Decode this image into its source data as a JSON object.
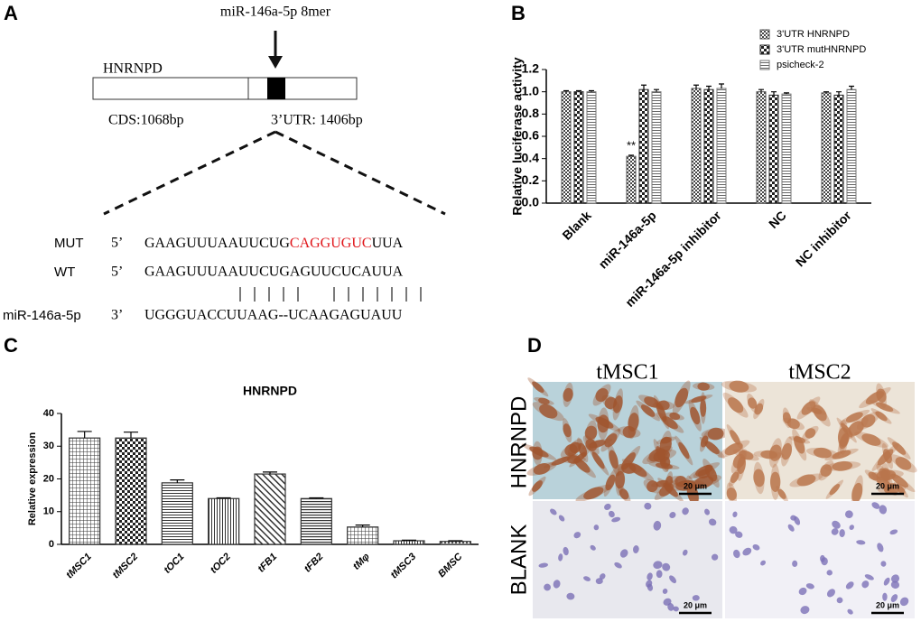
{
  "panels": [
    "A",
    "B",
    "C",
    "D"
  ],
  "diagram": {
    "site": "miR-146a-5p 8mer",
    "gene": "HNRNPD",
    "cds": "CDS:1068bp",
    "utr": "3’UTR: 1406bp",
    "mut": {
      "label": "MUT",
      "end": "5’",
      "seq": [
        "GAAGUUUAAUUCUG",
        "CAGGUGUC",
        "UUA"
      ]
    },
    "wt": {
      "label": "WT",
      "end": "5’",
      "seq": "GAAGUUUAAUUCUGAGUUCUCAUUA"
    },
    "mirna": {
      "label": "miR-146a-5p",
      "end": "3’",
      "seq": "UGGGUACCUUAAG--UCAAGAGUAUU"
    }
  },
  "chart_data": [
    {
      "type": "bar",
      "ylabel": "Relative luciferase activity",
      "categories": [
        "Blank",
        "miR-146a-5p",
        "miR-146a-5p inhibitor",
        "NC",
        "NC inhibitor"
      ],
      "series": [
        {
          "name": "3'UTR HNRNPD",
          "color": "#555555",
          "values": [
            1.0,
            0.42,
            1.03,
            1.0,
            0.99
          ],
          "errors": [
            0.01,
            0.01,
            0.03,
            0.02,
            0.01
          ]
        },
        {
          "name": "3'UTR mutHNRNPD",
          "color": "#222222",
          "values": [
            1.0,
            1.02,
            1.02,
            0.97,
            0.97
          ],
          "errors": [
            0.01,
            0.04,
            0.03,
            0.03,
            0.03
          ]
        },
        {
          "name": "psicheck-2",
          "color": "#777777",
          "values": [
            1.0,
            1.0,
            1.03,
            0.98,
            1.02
          ],
          "errors": [
            0.01,
            0.02,
            0.04,
            0.01,
            0.03
          ]
        }
      ],
      "annotation": "**",
      "ylim": [
        0,
        1.2
      ],
      "yticks": [
        {
          "value": 0,
          "label": "0.0"
        },
        0.2,
        0.4,
        0.6,
        0.8,
        {
          "value": 1,
          "label": "1.0"
        },
        1.2
      ],
      "legend": "top-right"
    },
    {
      "type": "bar",
      "title": "HNRNPD",
      "ylabel": "Relative expression",
      "categories": [
        "tMSC1",
        "tMSC2",
        "tOC1",
        "tOC2",
        "tFB1",
        "tFB2",
        "tMφ",
        "tMSC3",
        "BMSC"
      ],
      "values": [
        32.5,
        32.5,
        18.8,
        14,
        21.5,
        14,
        5.3,
        1.1,
        0.9
      ],
      "errors": [
        2,
        1.8,
        0.9,
        0.2,
        0.6,
        0.2,
        0.6,
        0.2,
        0.2
      ],
      "color": "#333333",
      "ylim": [
        0,
        40
      ],
      "yticks": [
        0,
        10,
        20,
        30,
        40
      ]
    }
  ],
  "micrographs": {
    "columns": [
      "tMSC1",
      "tMSC2"
    ],
    "rows": [
      "HNRNPD",
      "BLANK"
    ],
    "scale": [
      "20 μm",
      "20 μm",
      "20 μm",
      "20 μm"
    ]
  }
}
